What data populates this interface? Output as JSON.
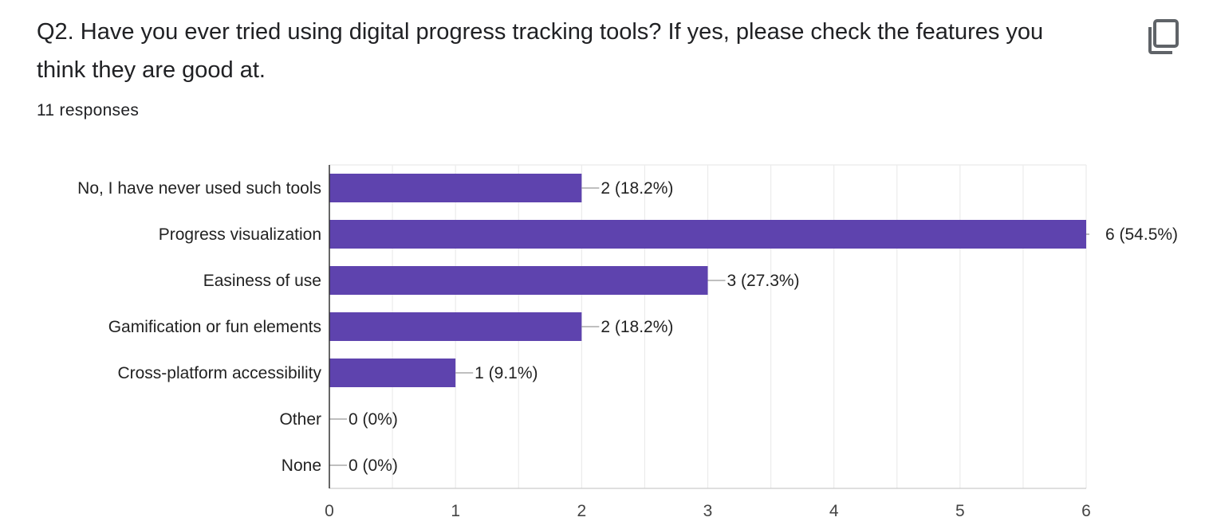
{
  "question": {
    "title": "Q2. Have you ever tried using digital progress tracking tools? If yes, please check the features you think they are good at.",
    "response_count": "11 responses"
  },
  "icons": {
    "copy": "copy-icon"
  },
  "colors": {
    "bar": "#5e43ae",
    "grid": "#ebebeb",
    "axis": "#333333",
    "leader": "#999999"
  },
  "chart_data": {
    "type": "bar",
    "orientation": "horizontal",
    "categories": [
      "No, I have never used such tools",
      "Progress visualization",
      "Easiness of use",
      "Gamification or fun elements",
      "Cross-platform accessibility",
      "Other",
      "None"
    ],
    "values": [
      2,
      6,
      3,
      2,
      1,
      0,
      0
    ],
    "data_labels": [
      "2 (18.2%)",
      "6 (54.5%)",
      "3 (27.3%)",
      "2 (18.2%)",
      "1 (9.1%)",
      "0 (0%)",
      "0 (0%)"
    ],
    "xlim": [
      0,
      6
    ],
    "xticks": [
      0,
      1,
      2,
      3,
      4,
      5,
      6
    ],
    "grid": true,
    "legend": "none"
  }
}
